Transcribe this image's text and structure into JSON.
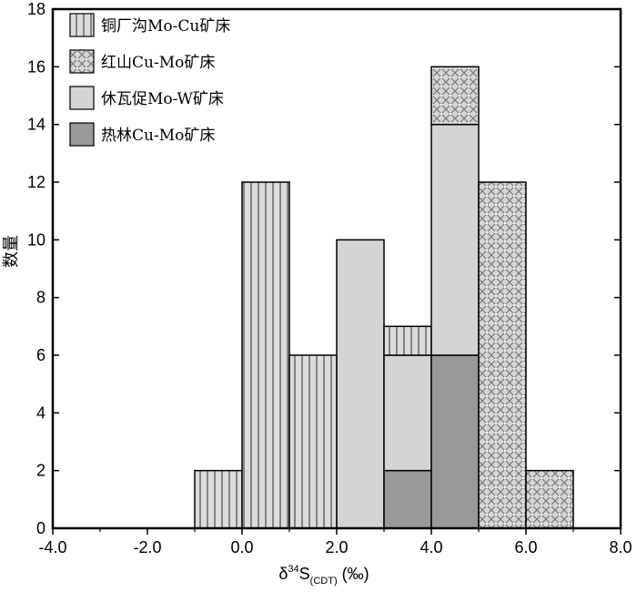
{
  "chart_data": {
    "type": "bar",
    "stacked": true,
    "xlabel_main": "δ",
    "xlabel_sup": "34",
    "xlabel_tail": "S",
    "xlabel_sub": "(CDT)",
    "xlabel_unit": " (‰)",
    "ylabel": "数量",
    "xlim": [
      -4.0,
      8.0
    ],
    "ylim": [
      0,
      18
    ],
    "x_ticks": [
      "-4.0",
      "-2.0",
      "0.0",
      "2.0",
      "4.0",
      "6.0",
      "8.0"
    ],
    "y_ticks": [
      "0",
      "2",
      "4",
      "6",
      "8",
      "10",
      "12",
      "14",
      "16",
      "18"
    ],
    "bin_width": 1.0,
    "bins": [
      {
        "x0": -1.0,
        "x1": 0.0,
        "segments": [
          {
            "series": "s1",
            "value": 2
          }
        ]
      },
      {
        "x0": 0.0,
        "x1": 1.0,
        "segments": [
          {
            "series": "s1",
            "value": 12
          }
        ]
      },
      {
        "x0": 1.0,
        "x1": 2.0,
        "segments": [
          {
            "series": "s1",
            "value": 6
          }
        ]
      },
      {
        "x0": 2.0,
        "x1": 3.0,
        "segments": [
          {
            "series": "s3",
            "value": 10
          }
        ]
      },
      {
        "x0": 3.0,
        "x1": 4.0,
        "segments": [
          {
            "series": "s4",
            "value": 2
          },
          {
            "series": "s3",
            "value": 4
          },
          {
            "series": "s1",
            "value": 1
          }
        ]
      },
      {
        "x0": 4.0,
        "x1": 5.0,
        "segments": [
          {
            "series": "s4",
            "value": 6
          },
          {
            "series": "s3",
            "value": 8
          },
          {
            "series": "s2",
            "value": 2
          }
        ]
      },
      {
        "x0": 5.0,
        "x1": 6.0,
        "segments": [
          {
            "series": "s2",
            "value": 12
          }
        ]
      },
      {
        "x0": 6.0,
        "x1": 7.0,
        "segments": [
          {
            "series": "s2",
            "value": 2
          }
        ]
      }
    ],
    "series": [
      {
        "id": "s1",
        "name": "铜厂沟Mo-Cu矿床",
        "pattern": "vertical-stripes",
        "fill": "#d9d9d9"
      },
      {
        "id": "s2",
        "name": "红山Cu-Mo矿床",
        "pattern": "crosshatch",
        "fill": "#d0d0d0"
      },
      {
        "id": "s3",
        "name": "休瓦促Mo-W矿床",
        "pattern": "solid",
        "fill": "#d4d4d4"
      },
      {
        "id": "s4",
        "name": "热林Cu-Mo矿床",
        "pattern": "solid",
        "fill": "#999999"
      }
    ],
    "legend_position": "top-left",
    "grid": false
  }
}
